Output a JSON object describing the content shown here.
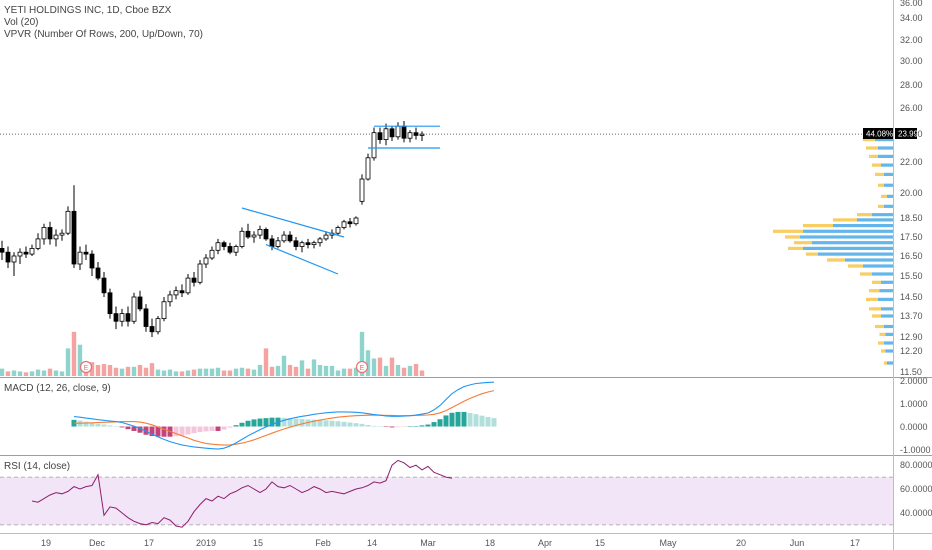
{
  "legend": {
    "symbol": "YETI HOLDINGS INC, 1D, Cboe BZX",
    "volume": "Vol (20)",
    "vpvr": "VPVR (Number Of Rows, 200, Up/Down, 70)",
    "macd": "MACD (12, 26, close, 9)",
    "rsi": "RSI (14, close)"
  },
  "price_badge": {
    "percent": "44.08%",
    "price": "23.99"
  },
  "earnings_marker": "E",
  "colors": {
    "up": "#ffffff",
    "down": "#000000",
    "candle_outline": "#000000",
    "vol_up": "#8fd3cd",
    "vol_down": "#f4a3a0",
    "vpvr_up": "#49a8e6",
    "vpvr_down": "#f7c445",
    "macd_line": "#2196f3",
    "signal_line": "#f57c36",
    "hist_pos": "#26a69a",
    "hist_pos_light": "#b2dfdb",
    "hist_neg": "#c2457a",
    "hist_neg_light": "#f3c6dc",
    "rsi_line": "#8e1f6b",
    "rsi_band": "#f3e5f8",
    "trendline": "#2196f3"
  },
  "chart_data": {
    "type": "candlestick",
    "price_axis": {
      "labels": [
        "36.00",
        "34.00",
        "32.00",
        "30.00",
        "28.00",
        "26.00",
        "24.00",
        "22.00",
        "20.00",
        "18.50",
        "17.50",
        "16.50",
        "15.50",
        "14.50",
        "13.70",
        "12.90",
        "12.20",
        "11.50"
      ],
      "current_price": 23.99
    },
    "x_axis": {
      "labels": [
        "19",
        "Dec",
        "17",
        "2019",
        "15",
        "Feb",
        "14",
        "Mar",
        "18",
        "Apr",
        "15",
        "May",
        "20",
        "Jun",
        "17"
      ]
    },
    "candles": [
      [
        16.9,
        17.3,
        16.3,
        16.7
      ],
      [
        16.7,
        17.0,
        15.9,
        16.2
      ],
      [
        16.2,
        16.7,
        15.5,
        16.5
      ],
      [
        16.5,
        16.9,
        16.1,
        16.7
      ],
      [
        16.7,
        17.0,
        16.4,
        16.6
      ],
      [
        16.6,
        17.1,
        16.5,
        16.9
      ],
      [
        16.9,
        17.7,
        16.8,
        17.4
      ],
      [
        17.4,
        18.2,
        17.1,
        18.0
      ],
      [
        18.0,
        18.3,
        17.1,
        17.4
      ],
      [
        17.4,
        17.9,
        17.0,
        17.6
      ],
      [
        17.6,
        17.9,
        17.3,
        17.7
      ],
      [
        17.7,
        19.2,
        17.6,
        18.9
      ],
      [
        18.9,
        20.5,
        15.9,
        16.1
      ],
      [
        16.1,
        17.0,
        15.8,
        16.7
      ],
      [
        16.7,
        17.1,
        16.3,
        16.6
      ],
      [
        16.6,
        16.8,
        15.5,
        15.9
      ],
      [
        15.9,
        16.2,
        15.3,
        15.4
      ],
      [
        15.4,
        15.7,
        14.5,
        14.7
      ],
      [
        14.7,
        14.9,
        13.6,
        13.8
      ],
      [
        13.8,
        14.1,
        13.2,
        13.5
      ],
      [
        13.5,
        14.0,
        13.3,
        13.8
      ],
      [
        13.8,
        14.1,
        13.3,
        13.5
      ],
      [
        13.5,
        14.7,
        13.4,
        14.5
      ],
      [
        14.5,
        14.8,
        13.9,
        14.0
      ],
      [
        14.0,
        14.2,
        13.1,
        13.3
      ],
      [
        13.3,
        13.6,
        12.9,
        13.1
      ],
      [
        13.1,
        13.7,
        13.0,
        13.6
      ],
      [
        13.6,
        14.5,
        13.5,
        14.3
      ],
      [
        14.3,
        14.8,
        14.1,
        14.6
      ],
      [
        14.6,
        15.0,
        14.4,
        14.8
      ],
      [
        14.8,
        15.1,
        14.5,
        14.7
      ],
      [
        14.7,
        15.6,
        14.6,
        15.4
      ],
      [
        15.4,
        15.7,
        15.0,
        15.2
      ],
      [
        15.2,
        16.3,
        15.1,
        16.1
      ],
      [
        16.1,
        16.6,
        15.9,
        16.4
      ],
      [
        16.4,
        17.0,
        16.3,
        16.8
      ],
      [
        16.8,
        17.4,
        16.6,
        17.2
      ],
      [
        17.2,
        17.3,
        16.8,
        17.0
      ],
      [
        17.0,
        17.2,
        16.6,
        16.7
      ],
      [
        16.7,
        17.1,
        16.5,
        17.0
      ],
      [
        17.0,
        18.0,
        16.9,
        17.8
      ],
      [
        17.8,
        18.2,
        17.4,
        17.5
      ],
      [
        17.5,
        17.8,
        17.2,
        17.6
      ],
      [
        17.6,
        18.1,
        17.4,
        17.9
      ],
      [
        17.9,
        18.0,
        17.3,
        17.4
      ],
      [
        17.4,
        17.6,
        16.8,
        17.0
      ],
      [
        17.0,
        17.5,
        16.9,
        17.3
      ],
      [
        17.3,
        17.8,
        17.2,
        17.6
      ],
      [
        17.6,
        17.8,
        17.2,
        17.3
      ],
      [
        17.3,
        17.5,
        16.8,
        17.0
      ],
      [
        17.0,
        17.3,
        16.7,
        17.2
      ],
      [
        17.2,
        17.4,
        16.9,
        17.1
      ],
      [
        17.1,
        17.3,
        16.9,
        17.2
      ],
      [
        17.2,
        17.5,
        17.0,
        17.4
      ],
      [
        17.4,
        17.8,
        17.3,
        17.6
      ],
      [
        17.6,
        17.9,
        17.4,
        17.7
      ],
      [
        17.7,
        18.1,
        17.6,
        18.0
      ],
      [
        18.0,
        18.4,
        17.9,
        18.3
      ],
      [
        18.3,
        18.5,
        18.0,
        18.2
      ],
      [
        18.2,
        18.6,
        18.1,
        18.5
      ],
      [
        19.5,
        21.2,
        19.3,
        20.9
      ],
      [
        20.9,
        22.6,
        20.8,
        22.3
      ],
      [
        22.3,
        24.5,
        22.1,
        24.1
      ],
      [
        24.1,
        24.5,
        23.3,
        23.6
      ],
      [
        23.6,
        24.8,
        23.2,
        24.4
      ],
      [
        24.4,
        24.6,
        23.5,
        23.8
      ],
      [
        23.8,
        24.9,
        23.6,
        24.6
      ],
      [
        24.6,
        25.0,
        23.4,
        23.7
      ],
      [
        23.7,
        24.3,
        23.4,
        24.1
      ],
      [
        24.1,
        24.5,
        23.6,
        23.9
      ],
      [
        23.9,
        24.2,
        23.5,
        23.99
      ]
    ],
    "volume": {
      "scale_max": 100,
      "values": [
        8,
        5,
        6,
        5,
        4,
        5,
        7,
        6,
        8,
        6,
        5,
        30,
        48,
        34,
        11,
        15,
        12,
        13,
        12,
        9,
        8,
        10,
        10,
        12,
        9,
        14,
        7,
        6,
        7,
        5,
        5,
        6,
        7,
        8,
        8,
        8,
        9,
        6,
        6,
        8,
        9,
        8,
        7,
        12,
        30,
        10,
        11,
        22,
        12,
        10,
        17,
        8,
        18,
        12,
        11,
        11,
        6,
        8,
        8,
        9,
        48,
        28,
        19,
        20,
        11,
        20,
        12,
        9,
        11,
        13,
        6
      ],
      "up": [
        1,
        0,
        1,
        1,
        0,
        1,
        1,
        1,
        0,
        1,
        1,
        1,
        0,
        1,
        0,
        0,
        0,
        0,
        0,
        0,
        1,
        0,
        1,
        0,
        0,
        0,
        1,
        1,
        1,
        1,
        0,
        1,
        0,
        1,
        1,
        1,
        1,
        0,
        0,
        1,
        1,
        0,
        1,
        1,
        0,
        0,
        1,
        1,
        0,
        0,
        1,
        0,
        1,
        1,
        1,
        1,
        1,
        1,
        0,
        1,
        1,
        1,
        1,
        0,
        1,
        0,
        1,
        0,
        1,
        0,
        0
      ],
      "earnings_markers": [
        14,
        60
      ]
    },
    "vpvr": {
      "range": [
        11.5,
        24.5
      ],
      "bins": [
        [
          11.8,
          6,
          4
        ],
        [
          12.2,
          8,
          5
        ],
        [
          12.6,
          10,
          6
        ],
        [
          13.0,
          9,
          5
        ],
        [
          13.3,
          12,
          6
        ],
        [
          13.7,
          14,
          8
        ],
        [
          14.0,
          16,
          8
        ],
        [
          14.4,
          18,
          10
        ],
        [
          14.8,
          16,
          9
        ],
        [
          15.2,
          14,
          8
        ],
        [
          15.6,
          22,
          14
        ],
        [
          16.0,
          30,
          20
        ],
        [
          16.3,
          44,
          32
        ],
        [
          16.6,
          58,
          50
        ],
        [
          16.9,
          70,
          60
        ],
        [
          17.2,
          66,
          54
        ],
        [
          17.5,
          72,
          62
        ],
        [
          17.8,
          80,
          60
        ],
        [
          18.1,
          60,
          40
        ],
        [
          18.4,
          40,
          24
        ],
        [
          18.7,
          24,
          14
        ],
        [
          19.2,
          10,
          6
        ],
        [
          19.8,
          8,
          4
        ],
        [
          20.5,
          10,
          6
        ],
        [
          21.2,
          12,
          6
        ],
        [
          21.8,
          14,
          8
        ],
        [
          22.4,
          16,
          10
        ],
        [
          23.0,
          18,
          10
        ],
        [
          23.6,
          20,
          12
        ],
        [
          24.2,
          12,
          6
        ]
      ]
    },
    "macd": {
      "axis_labels": [
        "2.0000",
        "1.0000",
        "0.0000",
        "-1.0000"
      ],
      "range": [
        -1.15,
        2.1
      ],
      "macd": [
        0.45,
        0.42,
        0.38,
        0.35,
        0.31,
        0.28,
        0.25,
        0.22,
        0.18,
        0.1,
        0.02,
        -0.08,
        -0.22,
        -0.35,
        -0.47,
        -0.58,
        -0.68,
        -0.76,
        -0.83,
        -0.88,
        -0.92,
        -0.95,
        -0.98,
        -1.0,
        -1.02,
        -0.98,
        -0.88,
        -0.74,
        -0.58,
        -0.42,
        -0.28,
        -0.14,
        -0.02,
        0.1,
        0.2,
        0.28,
        0.35,
        0.41,
        0.46,
        0.5,
        0.55,
        0.59,
        0.62,
        0.64,
        0.66,
        0.66,
        0.65,
        0.64,
        0.62,
        0.58,
        0.54,
        0.51,
        0.48,
        0.46,
        0.46,
        0.47,
        0.49,
        0.52,
        0.56,
        0.61,
        0.75,
        0.95,
        1.22,
        1.48,
        1.66,
        1.8,
        1.88,
        1.94,
        1.97,
        1.99,
        2.0
      ],
      "signal": [
        0.15,
        0.15,
        0.16,
        0.17,
        0.18,
        0.19,
        0.2,
        0.21,
        0.22,
        0.22,
        0.22,
        0.2,
        0.15,
        0.08,
        -0.02,
        -0.12,
        -0.22,
        -0.32,
        -0.42,
        -0.52,
        -0.62,
        -0.7,
        -0.76,
        -0.8,
        -0.82,
        -0.84,
        -0.83,
        -0.8,
        -0.75,
        -0.68,
        -0.6,
        -0.5,
        -0.4,
        -0.3,
        -0.2,
        -0.11,
        -0.03,
        0.05,
        0.12,
        0.18,
        0.24,
        0.29,
        0.34,
        0.38,
        0.42,
        0.45,
        0.47,
        0.49,
        0.5,
        0.51,
        0.51,
        0.51,
        0.5,
        0.5,
        0.49,
        0.49,
        0.49,
        0.5,
        0.51,
        0.52,
        0.55,
        0.62,
        0.72,
        0.86,
        1.0,
        1.14,
        1.27,
        1.38,
        1.48,
        1.56,
        1.62
      ]
    },
    "rsi": {
      "axis_labels": [
        "80.0000",
        "60.0000",
        "40.0000"
      ],
      "range": [
        24,
        86
      ],
      "band": [
        30,
        70
      ],
      "values": [
        50,
        49,
        52,
        55,
        57,
        56,
        58,
        62,
        60,
        62,
        63,
        72,
        38,
        45,
        44,
        40,
        36,
        33,
        31,
        30,
        32,
        31,
        36,
        34,
        29,
        28,
        33,
        41,
        47,
        52,
        50,
        54,
        52,
        56,
        58,
        61,
        63,
        60,
        57,
        60,
        66,
        62,
        61,
        63,
        60,
        57,
        59,
        62,
        60,
        57,
        58,
        57,
        56,
        58,
        60,
        61,
        63,
        66,
        65,
        67,
        80,
        84,
        82,
        78,
        80,
        76,
        79,
        74,
        72,
        70,
        69
      ]
    }
  }
}
